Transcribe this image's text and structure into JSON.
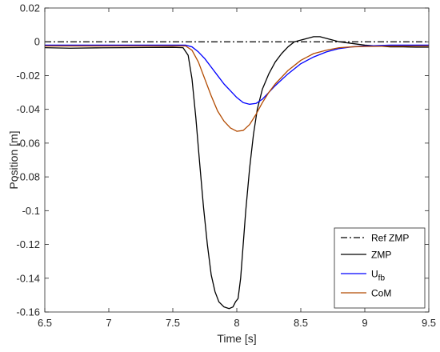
{
  "chart_data": {
    "type": "line",
    "xlabel": "Time [s]",
    "ylabel": "Position [m]",
    "xlim": [
      6.5,
      9.5
    ],
    "ylim": [
      -0.16,
      0.02
    ],
    "xticks": [
      "6.5",
      "7",
      "7.5",
      "8",
      "8.5",
      "9",
      "9.5"
    ],
    "yticks": [
      "0.02",
      "0",
      "-0.02",
      "-0.04",
      "-0.06",
      "-0.08",
      "-0.1",
      "-0.12",
      "-0.14",
      "-0.16"
    ],
    "grid": false,
    "legend_position": "bottom-right",
    "series": [
      {
        "name": "Ref ZMP",
        "color": "#000000",
        "style": "dashdot",
        "points": [
          [
            6.5,
            0.0
          ],
          [
            9.5,
            0.0
          ]
        ]
      },
      {
        "name": "ZMP",
        "color": "#000000",
        "style": "solid",
        "points": [
          [
            6.5,
            -0.0035
          ],
          [
            6.7,
            -0.0038
          ],
          [
            6.9,
            -0.0036
          ],
          [
            7.1,
            -0.0035
          ],
          [
            7.3,
            -0.0034
          ],
          [
            7.5,
            -0.0033
          ],
          [
            7.58,
            -0.0035
          ],
          [
            7.62,
            -0.008
          ],
          [
            7.65,
            -0.022
          ],
          [
            7.68,
            -0.045
          ],
          [
            7.71,
            -0.072
          ],
          [
            7.74,
            -0.098
          ],
          [
            7.77,
            -0.12
          ],
          [
            7.8,
            -0.138
          ],
          [
            7.83,
            -0.148
          ],
          [
            7.86,
            -0.154
          ],
          [
            7.9,
            -0.157
          ],
          [
            7.94,
            -0.158
          ],
          [
            7.97,
            -0.157
          ],
          [
            7.99,
            -0.154
          ],
          [
            8.01,
            -0.152
          ],
          [
            8.03,
            -0.14
          ],
          [
            8.05,
            -0.12
          ],
          [
            8.07,
            -0.1
          ],
          [
            8.1,
            -0.075
          ],
          [
            8.13,
            -0.055
          ],
          [
            8.16,
            -0.04
          ],
          [
            8.2,
            -0.028
          ],
          [
            8.25,
            -0.019
          ],
          [
            8.3,
            -0.012
          ],
          [
            8.35,
            -0.007
          ],
          [
            8.4,
            -0.003
          ],
          [
            8.45,
            0.0
          ],
          [
            8.5,
            0.001
          ],
          [
            8.55,
            0.002
          ],
          [
            8.6,
            0.003
          ],
          [
            8.65,
            0.003
          ],
          [
            8.7,
            0.002
          ],
          [
            8.75,
            0.001
          ],
          [
            8.8,
            0.0
          ],
          [
            8.9,
            -0.001
          ],
          [
            9.0,
            -0.002
          ],
          [
            9.1,
            -0.0025
          ],
          [
            9.2,
            -0.003
          ],
          [
            9.3,
            -0.003
          ],
          [
            9.4,
            -0.0032
          ],
          [
            9.5,
            -0.0032
          ]
        ]
      },
      {
        "name": "U_fb",
        "color": "#0000ff",
        "style": "solid",
        "points": [
          [
            6.5,
            -0.002
          ],
          [
            7.0,
            -0.002
          ],
          [
            7.5,
            -0.002
          ],
          [
            7.6,
            -0.002
          ],
          [
            7.65,
            -0.003
          ],
          [
            7.7,
            -0.006
          ],
          [
            7.75,
            -0.01
          ],
          [
            7.8,
            -0.015
          ],
          [
            7.85,
            -0.02
          ],
          [
            7.9,
            -0.025
          ],
          [
            7.95,
            -0.029
          ],
          [
            8.0,
            -0.033
          ],
          [
            8.05,
            -0.036
          ],
          [
            8.1,
            -0.037
          ],
          [
            8.15,
            -0.0365
          ],
          [
            8.2,
            -0.034
          ],
          [
            8.25,
            -0.03
          ],
          [
            8.3,
            -0.026
          ],
          [
            8.4,
            -0.019
          ],
          [
            8.5,
            -0.013
          ],
          [
            8.6,
            -0.009
          ],
          [
            8.7,
            -0.006
          ],
          [
            8.8,
            -0.004
          ],
          [
            8.9,
            -0.003
          ],
          [
            9.0,
            -0.0025
          ],
          [
            9.2,
            -0.002
          ],
          [
            9.5,
            -0.002
          ]
        ]
      },
      {
        "name": "CoM",
        "color": "#b24a00",
        "style": "solid",
        "points": [
          [
            6.5,
            -0.0025
          ],
          [
            7.0,
            -0.0025
          ],
          [
            7.5,
            -0.0025
          ],
          [
            7.6,
            -0.0025
          ],
          [
            7.65,
            -0.005
          ],
          [
            7.7,
            -0.012
          ],
          [
            7.75,
            -0.022
          ],
          [
            7.8,
            -0.032
          ],
          [
            7.85,
            -0.041
          ],
          [
            7.9,
            -0.047
          ],
          [
            7.95,
            -0.051
          ],
          [
            8.0,
            -0.053
          ],
          [
            8.05,
            -0.0525
          ],
          [
            8.1,
            -0.049
          ],
          [
            8.15,
            -0.043
          ],
          [
            8.2,
            -0.036
          ],
          [
            8.25,
            -0.03
          ],
          [
            8.3,
            -0.025
          ],
          [
            8.4,
            -0.017
          ],
          [
            8.5,
            -0.011
          ],
          [
            8.6,
            -0.007
          ],
          [
            8.7,
            -0.005
          ],
          [
            8.8,
            -0.0035
          ],
          [
            8.9,
            -0.003
          ],
          [
            9.0,
            -0.0028
          ],
          [
            9.2,
            -0.0026
          ],
          [
            9.5,
            -0.0025
          ]
        ]
      }
    ],
    "legend": [
      {
        "label": "Ref ZMP",
        "line_color": "#000000",
        "style": "dashdot"
      },
      {
        "label": "ZMP",
        "line_color": "#000000",
        "style": "solid"
      },
      {
        "label": "U",
        "subscript": "fb",
        "line_color": "#0000ff",
        "style": "solid"
      },
      {
        "label": "CoM",
        "line_color": "#b24a00",
        "style": "solid"
      }
    ]
  }
}
